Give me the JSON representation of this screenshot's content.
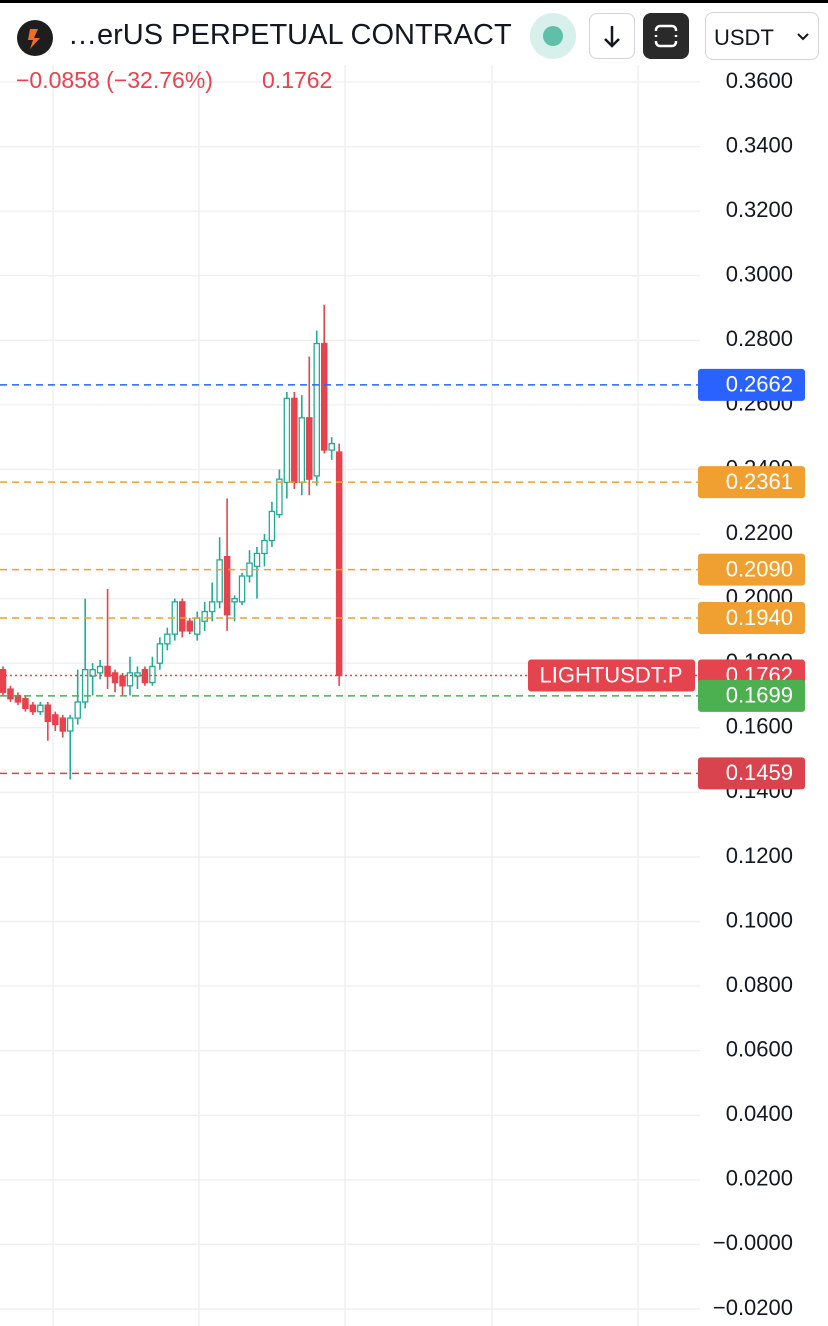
{
  "header": {
    "title": "…erUS PERPETUAL CONTRACT",
    "currency": "USDT"
  },
  "chart_data": {
    "type": "candlestick",
    "change": "−0.0858 (−32.76%)",
    "last": "0.1762",
    "up_color": "#22ab94",
    "down_color": "#e5434d",
    "open": [
      0.178,
      0.172,
      0.17,
      0.169,
      0.167,
      0.165,
      0.167,
      0.164,
      0.163,
      0.159,
      0.163,
      0.168,
      0.176,
      0.177,
      0.179,
      0.177,
      0.176,
      0.173,
      0.176,
      0.178,
      0.174,
      0.18,
      0.186,
      0.189,
      0.199,
      0.193,
      0.189,
      0.193,
      0.196,
      0.199,
      0.213,
      0.199,
      0.199,
      0.207,
      0.21,
      0.214,
      0.218,
      0.226,
      0.236,
      0.262,
      0.236,
      0.256,
      0.238,
      0.279,
      0.246,
      0.2454
    ],
    "high": [
      0.179,
      0.173,
      0.171,
      0.17,
      0.168,
      0.168,
      0.168,
      0.165,
      0.164,
      0.164,
      0.178,
      0.2,
      0.18,
      0.181,
      0.203,
      0.178,
      0.177,
      0.182,
      0.179,
      0.179,
      0.182,
      0.188,
      0.191,
      0.2,
      0.2,
      0.194,
      0.196,
      0.199,
      0.205,
      0.219,
      0.231,
      0.201,
      0.208,
      0.215,
      0.216,
      0.22,
      0.23,
      0.24,
      0.264,
      0.264,
      0.263,
      0.275,
      0.283,
      0.291,
      0.25,
      0.248
    ],
    "low": [
      0.17,
      0.168,
      0.167,
      0.165,
      0.164,
      0.164,
      0.156,
      0.159,
      0.157,
      0.144,
      0.161,
      0.166,
      0.17,
      0.175,
      0.172,
      0.171,
      0.17,
      0.17,
      0.172,
      0.173,
      0.173,
      0.178,
      0.184,
      0.187,
      0.188,
      0.189,
      0.187,
      0.19,
      0.193,
      0.197,
      0.19,
      0.193,
      0.198,
      0.205,
      0.2,
      0.21,
      0.216,
      0.225,
      0.231,
      0.234,
      0.232,
      0.232,
      0.235,
      0.245,
      0.243,
      0.173
    ],
    "close": [
      0.171,
      0.169,
      0.168,
      0.166,
      0.165,
      0.167,
      0.162,
      0.161,
      0.159,
      0.163,
      0.168,
      0.178,
      0.178,
      0.179,
      0.176,
      0.174,
      0.173,
      0.177,
      0.177,
      0.174,
      0.179,
      0.186,
      0.189,
      0.199,
      0.19,
      0.19,
      0.194,
      0.196,
      0.199,
      0.212,
      0.195,
      0.2,
      0.207,
      0.211,
      0.214,
      0.218,
      0.227,
      0.237,
      0.262,
      0.236,
      0.256,
      0.237,
      0.279,
      0.246,
      0.248,
      0.1762
    ],
    "ylim": [
      -0.02,
      0.36
    ],
    "yticks": [
      {
        "value": -0.02,
        "label": "−0.0200"
      },
      {
        "value": 0,
        "label": "−0.0000"
      },
      {
        "value": 0.02,
        "label": "0.0200"
      },
      {
        "value": 0.04,
        "label": "0.0400"
      },
      {
        "value": 0.06,
        "label": "0.0600"
      },
      {
        "value": 0.08,
        "label": "0.0800"
      },
      {
        "value": 0.1,
        "label": "0.1000"
      },
      {
        "value": 0.12,
        "label": "0.1200"
      },
      {
        "value": 0.14,
        "label": "0.1400"
      },
      {
        "value": 0.16,
        "label": "0.1600"
      },
      {
        "value": 0.18,
        "label": "0.1800"
      },
      {
        "value": 0.2,
        "label": "0.2000"
      },
      {
        "value": 0.22,
        "label": "0.2200"
      },
      {
        "value": 0.24,
        "label": "0.2400"
      },
      {
        "value": 0.26,
        "label": "0.2600"
      },
      {
        "value": 0.28,
        "label": "0.2800"
      },
      {
        "value": 0.3,
        "label": "0.3000"
      },
      {
        "value": 0.32,
        "label": "0.3200"
      },
      {
        "value": 0.34,
        "label": "0.3400"
      },
      {
        "value": 0.36,
        "label": "0.3600"
      }
    ],
    "grid": true,
    "price_lines": [
      {
        "value": 0.2662,
        "label": "0.2662",
        "color": "#2962ff",
        "style": "dashed"
      },
      {
        "value": 0.2361,
        "label": "0.2361",
        "color": "#f0a030",
        "style": "dashed"
      },
      {
        "value": 0.209,
        "label": "0.2090",
        "color": "#f0a030",
        "style": "dashed"
      },
      {
        "value": 0.194,
        "label": "0.1940",
        "color": "#f0a030",
        "style": "dashed"
      },
      {
        "value": 0.1762,
        "label": "0.1762",
        "name": "LIGHTUSDT.P",
        "color": "#e5434d",
        "style": "dotted"
      },
      {
        "value": 0.1699,
        "label": "0.1699",
        "color": "#4caf50",
        "style": "dashed"
      },
      {
        "value": 0.1459,
        "label": "0.1459",
        "color": "#d9434d",
        "style": "dashed"
      }
    ]
  }
}
